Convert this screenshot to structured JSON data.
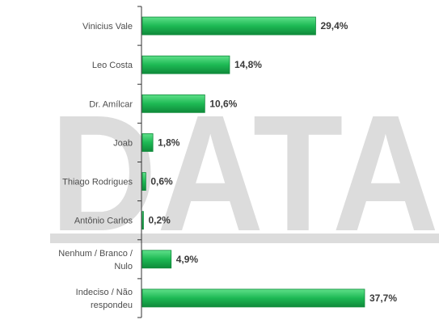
{
  "watermark": "DATA",
  "colors": {
    "bar": "#1db954",
    "bar_light": "#5fe08a",
    "bar_dark": "#0f8a3a",
    "axis": "#333333",
    "watermark": "#dcdcdc"
  },
  "chart_data": {
    "type": "bar",
    "orientation": "horizontal",
    "categories": [
      "Vinicius Vale",
      "Leo Costa",
      "Dr. Amílcar",
      "Joab",
      "Thiago Rodrigues",
      "Antônio Carlos",
      "Nenhum / Branco / Nulo",
      "Indeciso / Não respondeu"
    ],
    "values": [
      29.4,
      14.8,
      10.6,
      1.8,
      0.6,
      0.2,
      4.9,
      37.7
    ],
    "value_labels": [
      "29,4%",
      "14,8%",
      "10,6%",
      "1,8%",
      "0,6%",
      "0,2%",
      "4,9%",
      "37,7%"
    ],
    "xlim": [
      0,
      37.7
    ],
    "grid": false,
    "legend": "none"
  }
}
